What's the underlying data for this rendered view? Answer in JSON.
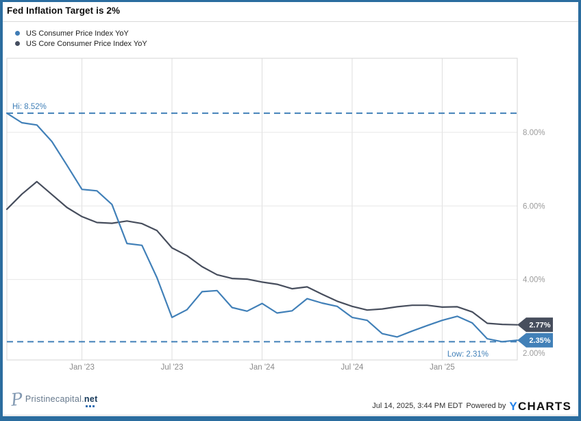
{
  "frame": {
    "border_color": "#2b6d9f"
  },
  "header": {
    "title": "Fed Inflation Target is 2%"
  },
  "legend": [
    {
      "label": "US Consumer Price Index YoY",
      "color": "#3f7cb5"
    },
    {
      "label": "US Core Consumer Price Index YoY",
      "color": "#454e60"
    }
  ],
  "chart_data": {
    "type": "line",
    "title": "Fed Inflation Target is 2%",
    "x_start": "Jul 2022",
    "x_end": "May 2025",
    "x_frequency": "monthly",
    "x_tick_labels": [
      "Jan '23",
      "Jul '23",
      "Jan '24",
      "Jul '24",
      "Jan '25"
    ],
    "x_tick_indices": [
      5,
      11,
      17,
      23,
      29
    ],
    "y_axis": {
      "side": "right",
      "tick_labels": [
        "8.00%",
        "6.00%",
        "4.00%",
        "2.00%"
      ],
      "tick_values": [
        8,
        6,
        4,
        2
      ],
      "grid_values": [
        8,
        6,
        4
      ],
      "ylim": [
        1.8,
        10.0
      ],
      "unit": "%"
    },
    "grid": true,
    "legend_position": "top-left",
    "series": [
      {
        "name": "US Core Consumer Price Index YoY",
        "color": "#474e5d",
        "end_label": "2.77%",
        "values": [
          5.91,
          6.32,
          6.66,
          6.31,
          5.96,
          5.71,
          5.55,
          5.53,
          5.59,
          5.52,
          5.33,
          4.86,
          4.65,
          4.35,
          4.13,
          4.03,
          4.01,
          3.93,
          3.87,
          3.75,
          3.8,
          3.6,
          3.41,
          3.27,
          3.17,
          3.2,
          3.26,
          3.3,
          3.3,
          3.25,
          3.26,
          3.12,
          2.81,
          2.78,
          2.77
        ]
      },
      {
        "name": "US Consumer Price Index YoY",
        "color": "#4180b8",
        "end_label": "2.35%",
        "values": [
          8.52,
          8.26,
          8.2,
          7.75,
          7.11,
          6.45,
          6.41,
          6.04,
          4.98,
          4.93,
          4.05,
          2.97,
          3.18,
          3.67,
          3.7,
          3.24,
          3.14,
          3.35,
          3.09,
          3.15,
          3.48,
          3.36,
          3.27,
          2.97,
          2.89,
          2.53,
          2.44,
          2.6,
          2.75,
          2.89,
          3.0,
          2.82,
          2.39,
          2.31,
          2.35
        ]
      }
    ],
    "annotations": {
      "hi": {
        "label": "Hi: 8.52%",
        "value": 8.52
      },
      "low": {
        "label": "Low: 2.31%",
        "value": 2.31
      },
      "dash_color": "#4180b8"
    }
  },
  "footer": {
    "logo_monogram": "P",
    "logo_text": "Pristinecapital.",
    "logo_suffix": "net",
    "timestamp": "Jul 14, 2025, 3:44 PM EDT",
    "powered_by": "Powered by",
    "brand_y": "Y",
    "brand_rest": "CHARTS"
  }
}
